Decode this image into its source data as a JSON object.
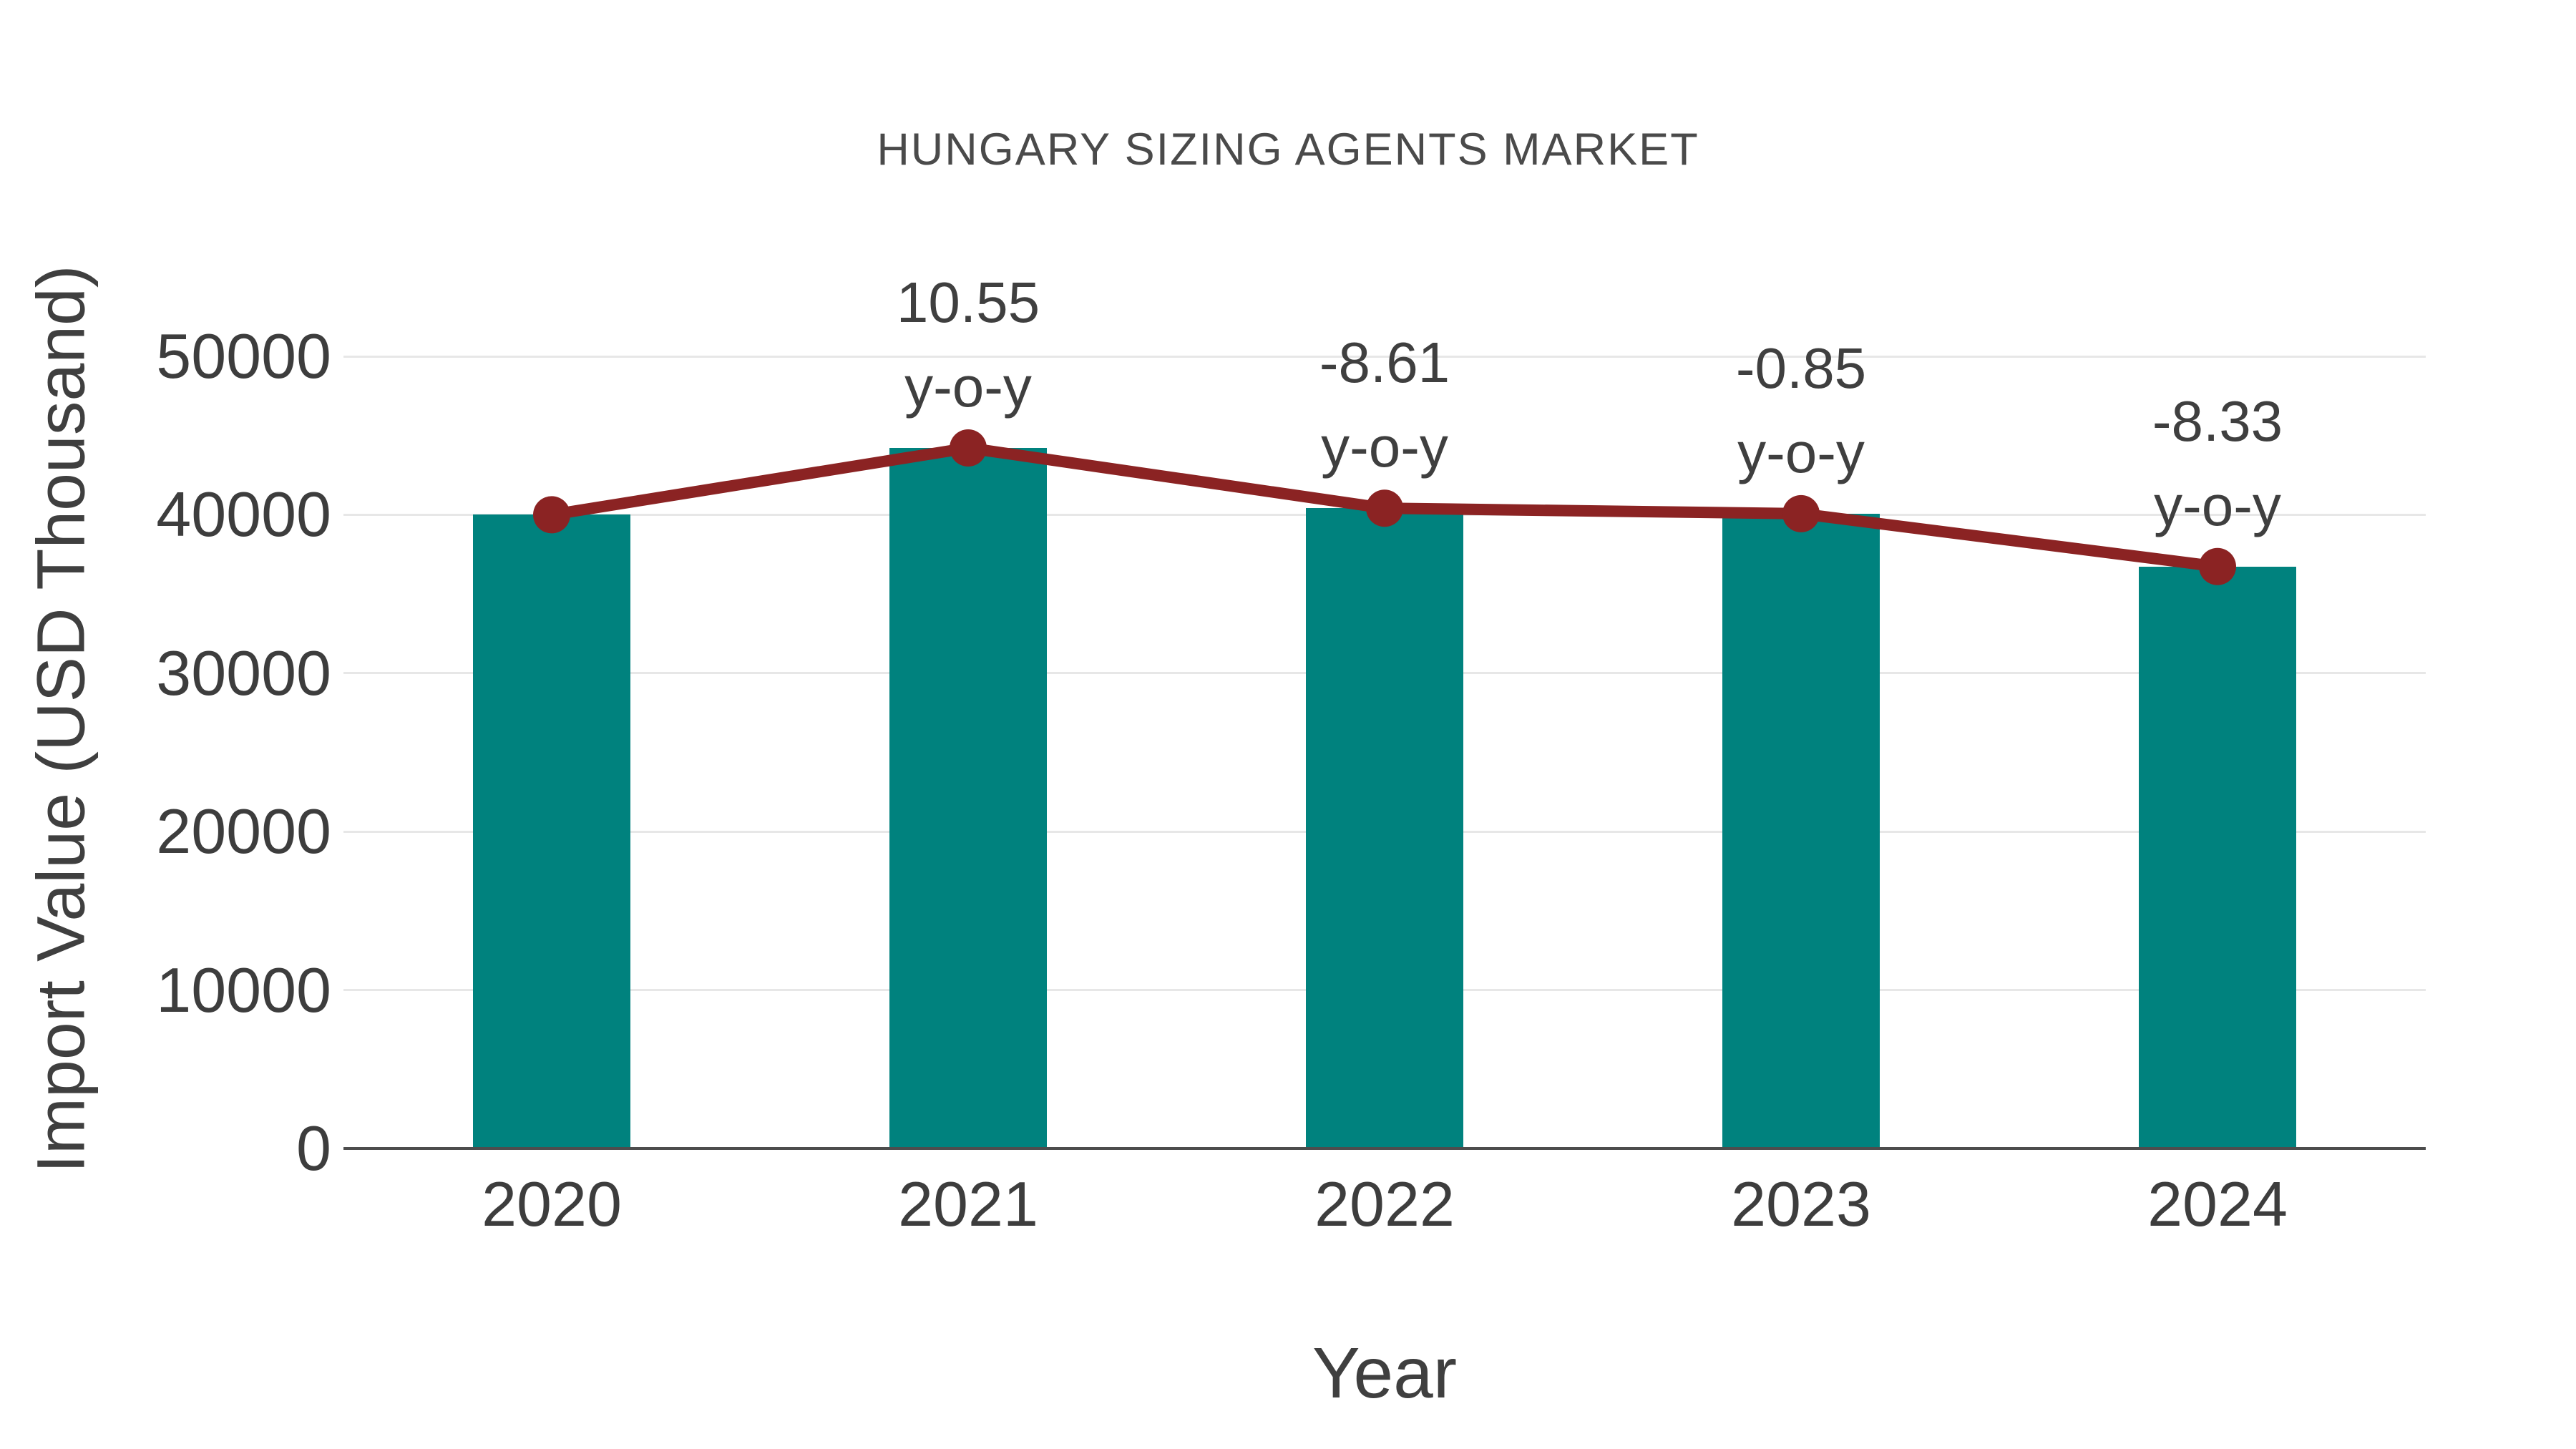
{
  "title": "HUNGARY SIZING AGENTS MARKET",
  "x_axis": {
    "title": "Year",
    "ticks": [
      "2020",
      "2021",
      "2022",
      "2023",
      "2024"
    ]
  },
  "y_axis": {
    "title": "Import Value (USD Thousand)",
    "ticks": [
      "0",
      "10000",
      "20000",
      "30000",
      "40000",
      "50000"
    ],
    "tick_values": [
      0,
      10000,
      20000,
      30000,
      40000,
      50000
    ]
  },
  "chart_data": {
    "type": "bar",
    "title": "HUNGARY SIZING AGENTS MARKET",
    "xlabel": "Year",
    "ylabel": "Import Value (USD Thousand)",
    "categories": [
      "2020",
      "2021",
      "2022",
      "2023",
      "2024"
    ],
    "series": [
      {
        "name": "Import Value (USD Thousand)",
        "type": "bar",
        "color": "#00827E",
        "values": [
          40000,
          44220,
          40413,
          40069,
          36731
        ]
      },
      {
        "name": "Year-over-year trend line",
        "type": "line",
        "color": "#8B2323",
        "values": [
          40000,
          44220,
          40413,
          40069,
          36731
        ]
      }
    ],
    "annotations": [
      {
        "category": "2021",
        "line1": "10.55",
        "line2": "y-o-y"
      },
      {
        "category": "2022",
        "line1": "-8.61",
        "line2": "y-o-y"
      },
      {
        "category": "2023",
        "line1": "-0.85",
        "line2": "y-o-y"
      },
      {
        "category": "2024",
        "line1": "-8.33",
        "line2": "y-o-y"
      }
    ],
    "ylim": [
      0,
      50000
    ],
    "grid": true,
    "legend": false
  },
  "colors": {
    "bar": "#00827E",
    "line": "#8B2323",
    "marker": "#8B2323",
    "text": "#3F3F3F",
    "grid": "#E7E7E7",
    "axis": "#4D4D4D",
    "background": "#FFFFFF"
  }
}
